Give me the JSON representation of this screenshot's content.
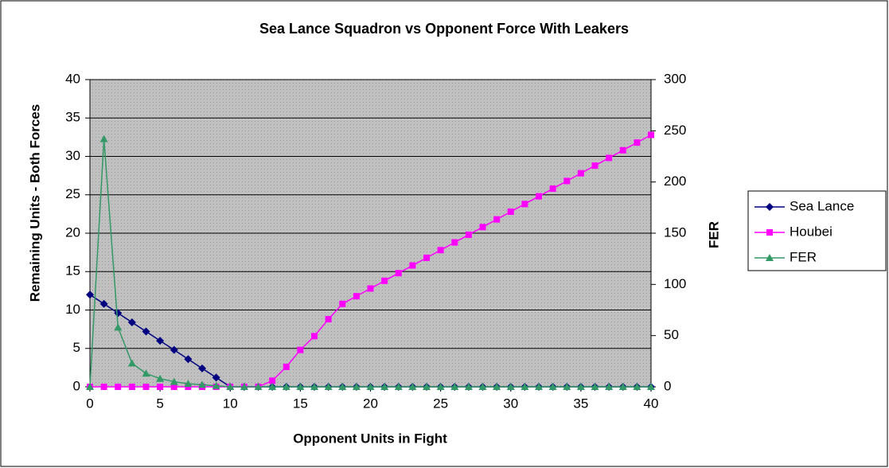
{
  "chart_data": {
    "type": "line",
    "title": "Sea Lance Squadron vs Opponent Force With Leakers",
    "x_label": "Opponent Units in Fight",
    "y_label": "Remaining Units - Both Forces",
    "y2_label": "FER",
    "x": [
      0,
      1,
      2,
      3,
      4,
      5,
      6,
      7,
      8,
      9,
      10,
      11,
      12,
      13,
      14,
      15,
      16,
      17,
      18,
      19,
      20,
      21,
      22,
      23,
      24,
      25,
      26,
      27,
      28,
      29,
      30,
      31,
      32,
      33,
      34,
      35,
      36,
      37,
      38,
      39,
      40
    ],
    "xlim": [
      0,
      40
    ],
    "xticks": [
      0,
      5,
      10,
      15,
      20,
      25,
      30,
      35,
      40
    ],
    "ylim": [
      0,
      40
    ],
    "yticks": [
      0,
      5,
      10,
      15,
      20,
      25,
      30,
      35,
      40
    ],
    "y2lim": [
      0,
      300
    ],
    "y2ticks": [
      0,
      50,
      100,
      150,
      200,
      250,
      300
    ],
    "grid": true,
    "legend": "right",
    "series": [
      {
        "name": "Sea Lance",
        "color": "#000080",
        "marker": "diamond",
        "values": [
          12,
          10.8,
          9.6,
          8.4,
          7.2,
          6,
          4.8,
          3.6,
          2.4,
          1.2,
          0,
          0,
          0,
          0,
          0,
          0,
          0,
          0,
          0,
          0,
          0,
          0,
          0,
          0,
          0,
          0,
          0,
          0,
          0,
          0,
          0,
          0,
          0,
          0,
          0,
          0,
          0,
          0,
          0,
          0,
          0
        ]
      },
      {
        "name": "Houbei",
        "color": "#ff00ff",
        "marker": "square",
        "values": [
          0,
          0,
          0,
          0,
          0,
          0,
          0,
          0,
          0,
          0,
          0,
          0,
          0,
          0.8,
          2.6,
          4.8,
          6.6,
          8.8,
          10.8,
          11.8,
          12.8,
          13.8,
          14.8,
          15.8,
          16.8,
          17.8,
          18.8,
          19.8,
          20.8,
          21.8,
          22.8,
          23.8,
          24.8,
          25.8,
          26.8,
          27.8,
          28.8,
          29.8,
          30.8,
          31.8,
          32.8
        ]
      },
      {
        "name": "FER",
        "color": "#339966",
        "marker": "triangle",
        "axis": "y2",
        "values": [
          0,
          242,
          58,
          23,
          13,
          8,
          5,
          3,
          2,
          1,
          0,
          0,
          0,
          0,
          0,
          0,
          0,
          0,
          0,
          0,
          0,
          0,
          0,
          0,
          0,
          0,
          0,
          0,
          0,
          0,
          0,
          0,
          0,
          0,
          0,
          0,
          0,
          0,
          0,
          0,
          0
        ]
      }
    ]
  }
}
